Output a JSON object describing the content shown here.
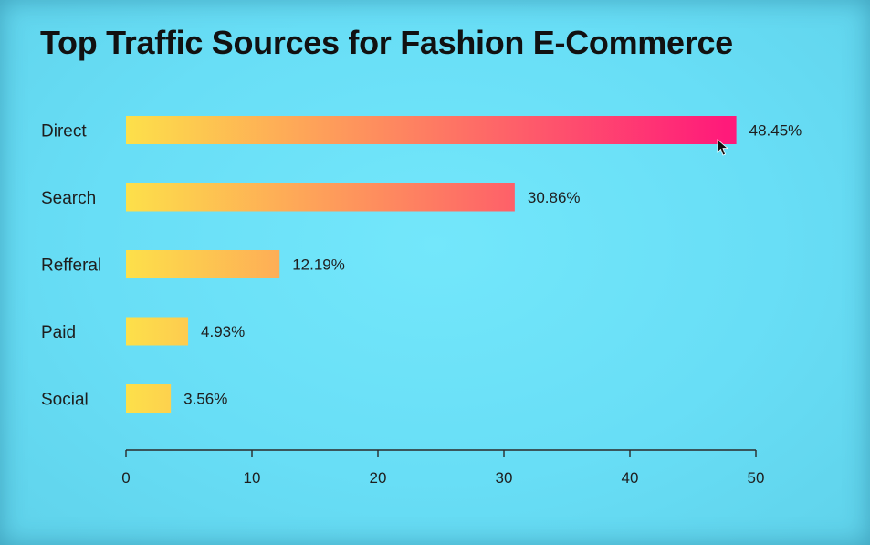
{
  "chart_data": {
    "type": "bar",
    "orientation": "horizontal",
    "title": "Top Traffic Sources for Fashion E-Commerce",
    "categories": [
      "Direct",
      "Search",
      "Refferal",
      "Paid",
      "Social"
    ],
    "values": [
      48.45,
      30.86,
      12.19,
      4.93,
      3.56
    ],
    "value_labels": [
      "48.45%",
      "30.86%",
      "12.19%",
      "4.93%",
      "3.56%"
    ],
    "xlim": [
      0,
      50
    ],
    "xticks": [
      0,
      10,
      20,
      30,
      40,
      50
    ],
    "xtick_labels": [
      "0",
      "10",
      "20",
      "30",
      "40",
      "50"
    ],
    "xlabel": "",
    "ylabel": "",
    "grid": false,
    "legend": "none",
    "colors": {
      "bar_start": "#fde04a",
      "bar_end": "#ff1a7a",
      "background": "#68def6",
      "text": "#1e1e1e"
    }
  },
  "cursor_icon": "mouse-pointer-icon"
}
